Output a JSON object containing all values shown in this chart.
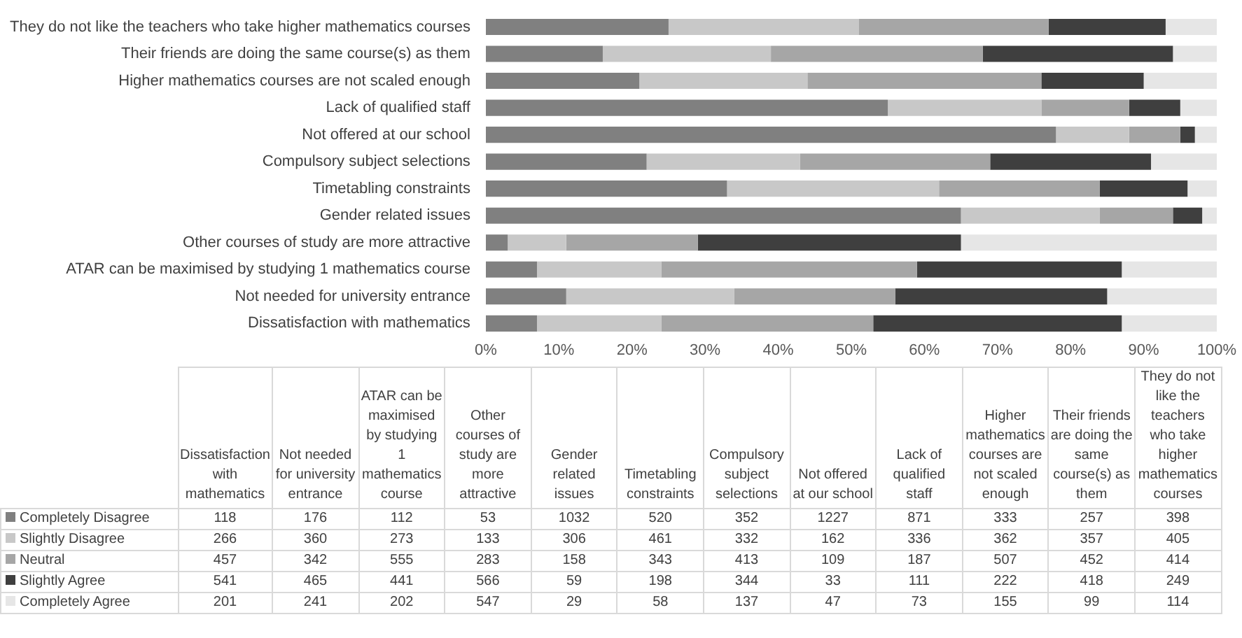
{
  "chart_data": [
    {
      "type": "bar",
      "orientation": "horizontal",
      "stacked": true,
      "grid": false,
      "categories": [
        "They do not like the teachers who take higher mathematics courses",
        "Their friends are doing the same course(s) as them",
        "Higher mathematics courses are not scaled enough",
        "Lack of qualified staff",
        "Not offered at our school",
        "Compulsory subject selections",
        "Timetabling constraints",
        "Gender related issues",
        "Other courses of study are more attractive",
        "ATAR can be maximised by studying 1 mathematics course",
        "Not needed for university entrance",
        "Dissatisfaction with mathematics"
      ],
      "xlim": [
        0,
        100
      ],
      "xticks": [
        {
          "value": 0,
          "label": "0%"
        },
        {
          "value": 10,
          "label": "10%"
        },
        {
          "value": 20,
          "label": "20%"
        },
        {
          "value": 30,
          "label": "30%"
        },
        {
          "value": 40,
          "label": "40%"
        },
        {
          "value": 50,
          "label": "50%"
        },
        {
          "value": 60,
          "label": "60%"
        },
        {
          "value": 70,
          "label": "70%"
        },
        {
          "value": 80,
          "label": "80%"
        },
        {
          "value": 90,
          "label": "90%"
        },
        {
          "value": 100,
          "label": "100%"
        }
      ],
      "series": [
        {
          "color": "#808080",
          "values": [
            25,
            16,
            21,
            55,
            78,
            22,
            33,
            65,
            3,
            7,
            11,
            7
          ]
        },
        {
          "color": "#c8c8c8",
          "values": [
            26,
            23,
            23,
            21,
            10,
            21,
            29,
            19,
            8,
            17,
            23,
            17
          ]
        },
        {
          "color": "#a6a6a6",
          "values": [
            26,
            29,
            32,
            12,
            7,
            26,
            22,
            10,
            18,
            35,
            22,
            29
          ]
        },
        {
          "color": "#3f3f3f",
          "values": [
            16,
            26,
            14,
            7,
            2,
            22,
            12,
            4,
            36,
            28,
            29,
            34
          ]
        },
        {
          "color": "#e6e6e6",
          "values": [
            7,
            6,
            10,
            5,
            3,
            9,
            4,
            2,
            35,
            13,
            15,
            13
          ]
        }
      ]
    },
    {
      "type": "other",
      "data_labels": true,
      "categories": [
        "Dissatisfaction with mathematics",
        "Not needed for university entrance",
        "ATAR can be maximised by studying 1 mathematics course",
        "Other courses of study are more attractive",
        "Gender related issues",
        "Timetabling constraints",
        "Compulsory subject selections",
        "Not offered at our school",
        "Lack of qualified staff",
        "Higher mathematics courses are not scaled enough",
        "Their friends are doing the same course(s) as them",
        "They do not like the teachers who take higher mathematics courses"
      ],
      "series": [
        {
          "name": "Completely Disagree",
          "color": "#808080",
          "values": [
            118,
            176,
            112,
            53,
            1032,
            520,
            352,
            1227,
            871,
            333,
            257,
            398
          ]
        },
        {
          "name": "Slightly Disagree",
          "color": "#c8c8c8",
          "values": [
            266,
            360,
            273,
            133,
            306,
            461,
            332,
            162,
            336,
            362,
            357,
            405
          ]
        },
        {
          "name": "Neutral",
          "color": "#a6a6a6",
          "values": [
            457,
            342,
            555,
            283,
            158,
            343,
            413,
            109,
            187,
            507,
            452,
            414
          ]
        },
        {
          "name": "Slightly Agree",
          "color": "#3f3f3f",
          "values": [
            541,
            465,
            441,
            566,
            59,
            198,
            344,
            33,
            111,
            222,
            418,
            249
          ]
        },
        {
          "name": "Completely Agree",
          "color": "#e6e6e6",
          "values": [
            201,
            241,
            202,
            547,
            29,
            58,
            137,
            47,
            73,
            155,
            99,
            114
          ]
        }
      ]
    }
  ]
}
